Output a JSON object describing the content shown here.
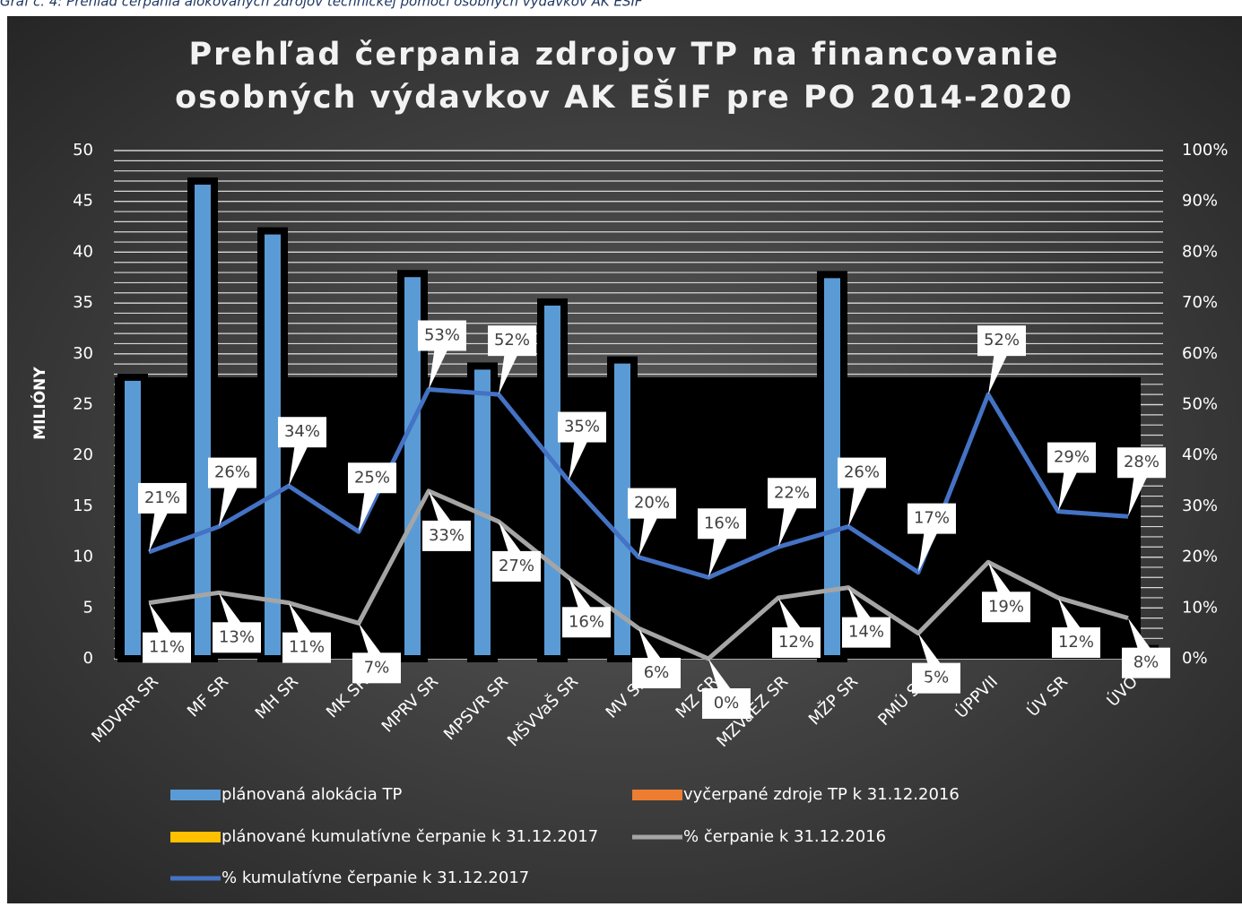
{
  "caption": "Graf č. 4: Prehľad čerpania alokovaných zdrojov technickej pomoci osobných výdavkov AK EŠIF",
  "chart_data": {
    "type": "bar-line",
    "title": [
      "Prehľad čerpania zdrojov TP na financovanie",
      "osobných výdavkov AK EŠIF pre PO 2014-2020"
    ],
    "y_label": "MILIÓNY",
    "categories": [
      "MDVRR SR",
      "MF SR",
      "MH SR",
      "MK SR",
      "MPRV SR",
      "MPSVR SR",
      "MŠVVaŠ SR",
      "MV SR",
      "MZ SR",
      "MZVaEZ SR",
      "MŽP SR",
      "PMÚ SR",
      "ÚPPVII",
      "ÚV SR",
      "ÚVO"
    ],
    "ylim": [
      0,
      50
    ],
    "yticks": [
      0,
      5,
      10,
      15,
      20,
      25,
      30,
      35,
      40,
      45,
      50
    ],
    "y2lim": [
      0,
      100
    ],
    "y2ticks": [
      {
        "value": 0,
        "label": "0%"
      },
      {
        "value": 10,
        "label": "10%"
      },
      {
        "value": 20,
        "label": "20%"
      },
      {
        "value": 30,
        "label": "30%"
      },
      {
        "value": 40,
        "label": "40%"
      },
      {
        "value": 50,
        "label": "50%"
      },
      {
        "value": 60,
        "label": "60%"
      },
      {
        "value": 70,
        "label": "70%"
      },
      {
        "value": 80,
        "label": "80%"
      },
      {
        "value": 90,
        "label": "90%"
      },
      {
        "value": 100,
        "label": "100%"
      }
    ],
    "grid": true,
    "minor_grid_step": 1,
    "series": [
      {
        "name": "plánovaná alokácia TP",
        "kind": "bar",
        "color": "#5b9bd5",
        "values": [
          27.7,
          47.0,
          42.1,
          null,
          37.9,
          28.8,
          35.1,
          29.4,
          null,
          null,
          37.8,
          null,
          null,
          null,
          null
        ]
      },
      {
        "name": "vyčerpané zdroje TP k 31.12.2016",
        "kind": "bar",
        "color": "#ed7d31",
        "values": [
          null,
          null,
          null,
          null,
          null,
          null,
          null,
          null,
          null,
          null,
          null,
          null,
          null,
          null,
          null
        ]
      },
      {
        "name": "plánované kumulatívne čerpanie k 31.12.2017",
        "kind": "bar",
        "color": "#ffc000",
        "values": [
          null,
          null,
          null,
          null,
          null,
          null,
          null,
          null,
          null,
          null,
          null,
          null,
          null,
          null,
          1.0
        ]
      },
      {
        "name": "% čerpanie k 31.12.2016",
        "kind": "line",
        "axis": "y2",
        "color": "#a5a5a5",
        "values": [
          11,
          13,
          11,
          7,
          33,
          27,
          16,
          6,
          0,
          12,
          14,
          5,
          19,
          12,
          8
        ],
        "value_labels": [
          "11%",
          "13%",
          "11%",
          "7%",
          "33%",
          "27%",
          "16%",
          "6%",
          "0%",
          "12%",
          "14%",
          "5%",
          "19%",
          "12%",
          "8%"
        ]
      },
      {
        "name": "% kumulatívne čerpanie k 31.12.2017",
        "kind": "line",
        "axis": "y2",
        "color": "#4472c4",
        "values": [
          21,
          26,
          34,
          25,
          53,
          52,
          35,
          20,
          16,
          22,
          26,
          17,
          52,
          29,
          28
        ],
        "value_labels": [
          "21%",
          "26%",
          "34%",
          "25%",
          "53%",
          "52%",
          "35%",
          "20%",
          "16%",
          "22%",
          "26%",
          "17%",
          "52%",
          "29%",
          "28%"
        ]
      }
    ]
  }
}
